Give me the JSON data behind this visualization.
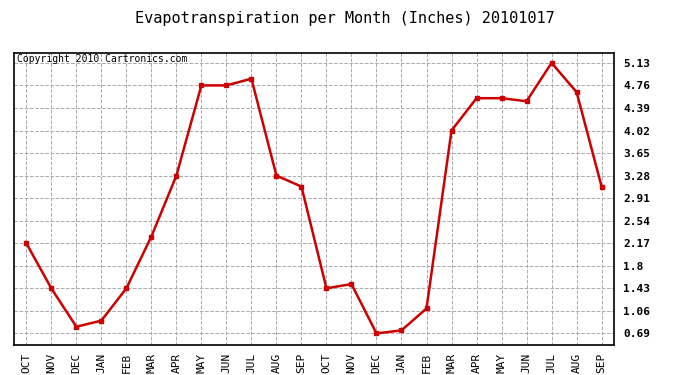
{
  "title": "Evapotranspiration per Month (Inches) 20101017",
  "copyright": "Copyright 2010 Cartronics.com",
  "months": [
    "OCT",
    "NOV",
    "DEC",
    "JAN",
    "FEB",
    "MAR",
    "APR",
    "MAY",
    "JUN",
    "JUL",
    "AUG",
    "SEP",
    "OCT",
    "NOV",
    "DEC",
    "JAN",
    "FEB",
    "MAR",
    "APR",
    "MAY",
    "JUN",
    "JUL",
    "AUG",
    "SEP"
  ],
  "values": [
    2.17,
    1.43,
    0.8,
    0.9,
    1.43,
    2.28,
    3.28,
    4.76,
    4.76,
    4.87,
    3.28,
    3.1,
    1.43,
    1.5,
    0.69,
    0.74,
    1.1,
    4.02,
    4.55,
    4.55,
    4.5,
    5.13,
    4.65,
    3.1
  ],
  "line_color": "#cc0000",
  "marker": "s",
  "marker_size": 3,
  "marker_color": "#cc0000",
  "bg_color": "#ffffff",
  "plot_bg_color": "#ffffff",
  "grid_color": "#aaaaaa",
  "grid_style": "--",
  "yticks": [
    0.69,
    1.06,
    1.43,
    1.8,
    2.17,
    2.54,
    2.91,
    3.28,
    3.65,
    4.02,
    4.39,
    4.76,
    5.13
  ],
  "ylim": [
    0.5,
    5.3
  ],
  "title_fontsize": 11,
  "copyright_fontsize": 7,
  "tick_fontsize": 8,
  "linewidth": 1.8
}
